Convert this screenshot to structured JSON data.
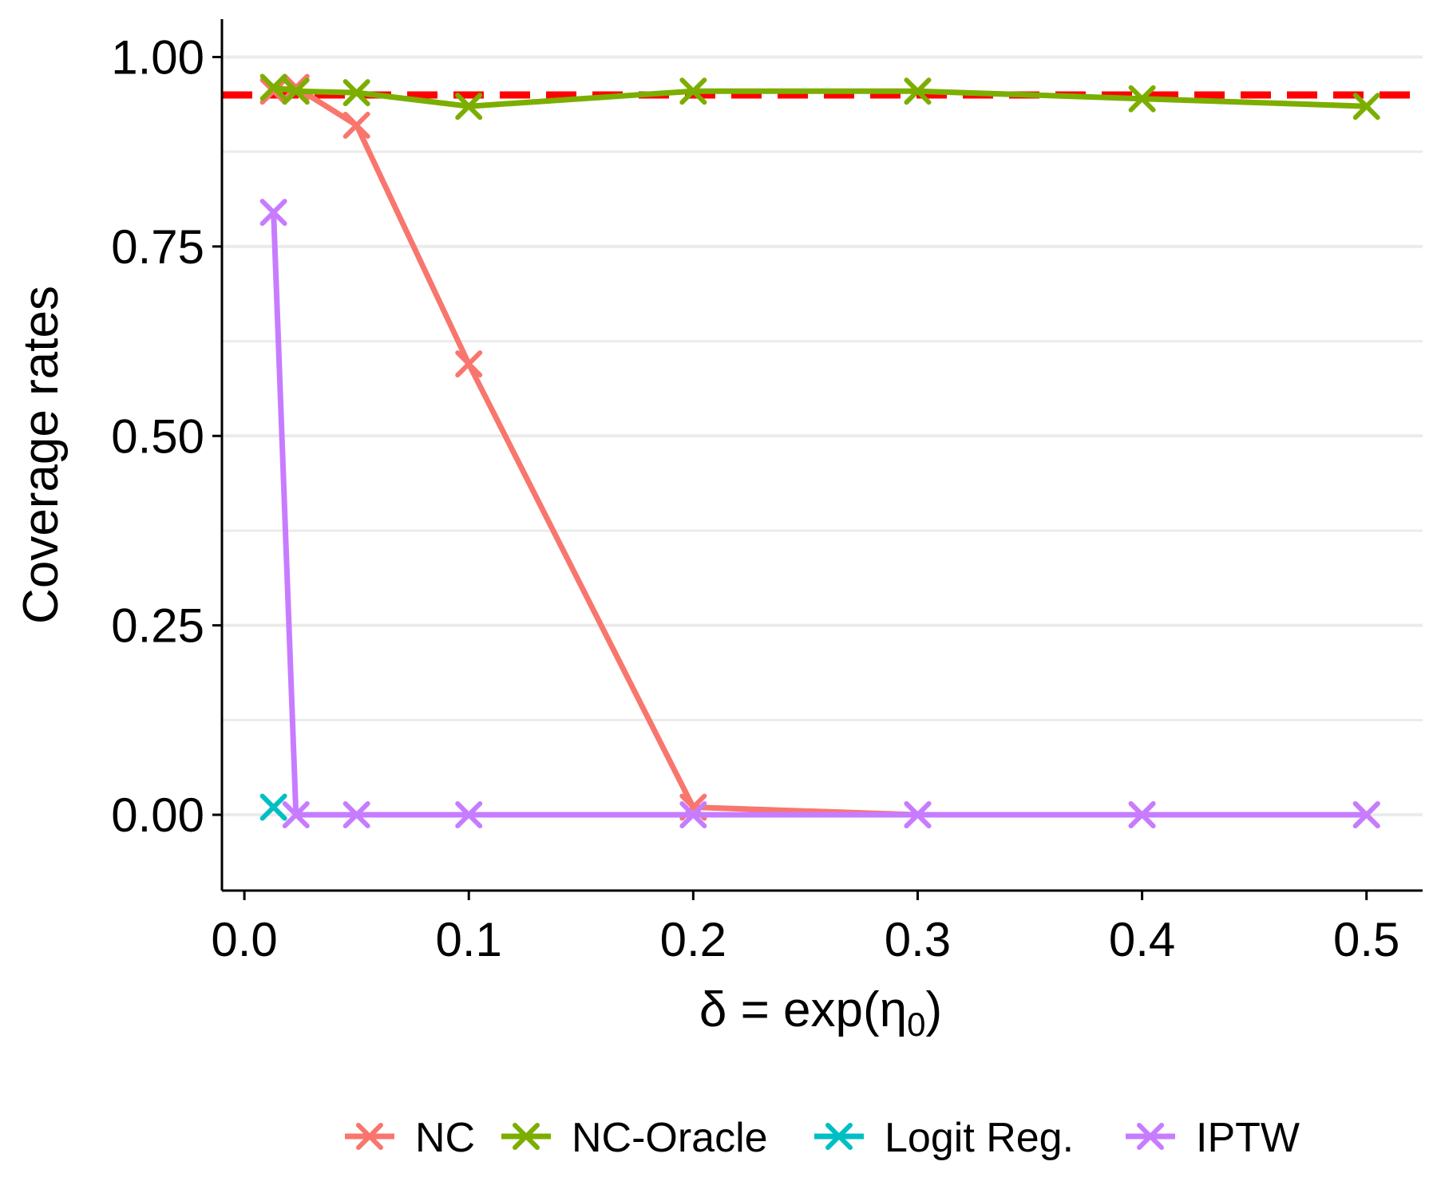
{
  "chart_data": {
    "type": "line",
    "title": "",
    "xlabel": "δ = exp(η0)",
    "xlabel_main": "δ = exp(η",
    "xlabel_sub": "0",
    "xlabel_close": ")",
    "ylabel": "Coverage rates",
    "xlim": [
      -0.01,
      0.525
    ],
    "ylim": [
      -0.1,
      1.05
    ],
    "x_ticks": [
      0.0,
      0.1,
      0.2,
      0.3,
      0.4,
      0.5
    ],
    "x_tick_labels": [
      "0.0",
      "0.1",
      "0.2",
      "0.3",
      "0.4",
      "0.5"
    ],
    "y_ticks": [
      0.0,
      0.25,
      0.5,
      0.75,
      1.0
    ],
    "y_tick_labels": [
      "0.00",
      "0.25",
      "0.50",
      "0.75",
      "1.00"
    ],
    "grid": "horizontal",
    "reference_line": {
      "y": 0.95,
      "color": "#ff0000",
      "style": "dashed"
    },
    "legend_position": "bottom",
    "series": [
      {
        "name": "NC",
        "color": "#f8766d",
        "x": [
          0.013,
          0.023,
          0.05,
          0.1,
          0.2,
          0.3,
          0.4,
          0.5
        ],
        "y": [
          0.955,
          0.96,
          0.91,
          0.595,
          0.01,
          0.0,
          0.0,
          0.0
        ]
      },
      {
        "name": "NC-Oracle",
        "color": "#7cae00",
        "x": [
          0.013,
          0.023,
          0.05,
          0.1,
          0.2,
          0.3,
          0.4,
          0.5
        ],
        "y": [
          0.96,
          0.955,
          0.953,
          0.935,
          0.955,
          0.955,
          0.945,
          0.935
        ]
      },
      {
        "name": "Logit Reg.",
        "color": "#00bfc4",
        "x": [
          0.013
        ],
        "y": [
          0.01
        ]
      },
      {
        "name": "IPTW",
        "color": "#c77cff",
        "x": [
          0.013,
          0.023,
          0.05,
          0.1,
          0.2,
          0.3,
          0.4,
          0.5
        ],
        "y": [
          0.795,
          0.0,
          0.0,
          0.0,
          0.0,
          0.0,
          0.0,
          0.0
        ]
      }
    ]
  }
}
